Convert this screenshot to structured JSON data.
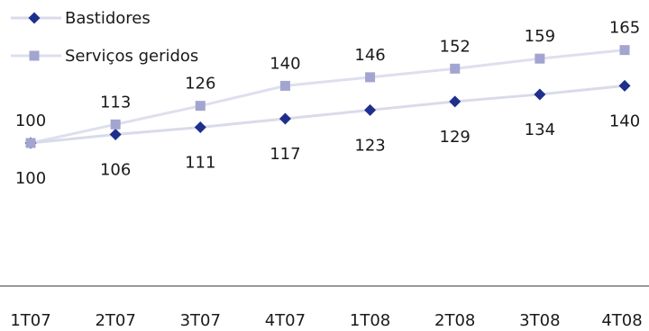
{
  "chart_data": {
    "type": "line",
    "categories": [
      "1T07",
      "2T07",
      "3T07",
      "4T07",
      "1T08",
      "2T08",
      "3T08",
      "4T08"
    ],
    "series": [
      {
        "name": "Bastidores",
        "values": [
          100,
          106,
          111,
          117,
          123,
          129,
          134,
          140
        ],
        "color": "#1f2f8c",
        "line_color": "#d9dbea",
        "marker": "diamond",
        "label_position": "below"
      },
      {
        "name": "Serviços geridos",
        "values": [
          100,
          113,
          126,
          140,
          146,
          152,
          159,
          165
        ],
        "color": "#a2a5cf",
        "line_color": "#dedfee",
        "marker": "square",
        "label_position": "above"
      }
    ],
    "ylim": [
      0,
      200
    ],
    "grid": false,
    "legend_position": "top-left",
    "baseline_color": "#333333"
  }
}
